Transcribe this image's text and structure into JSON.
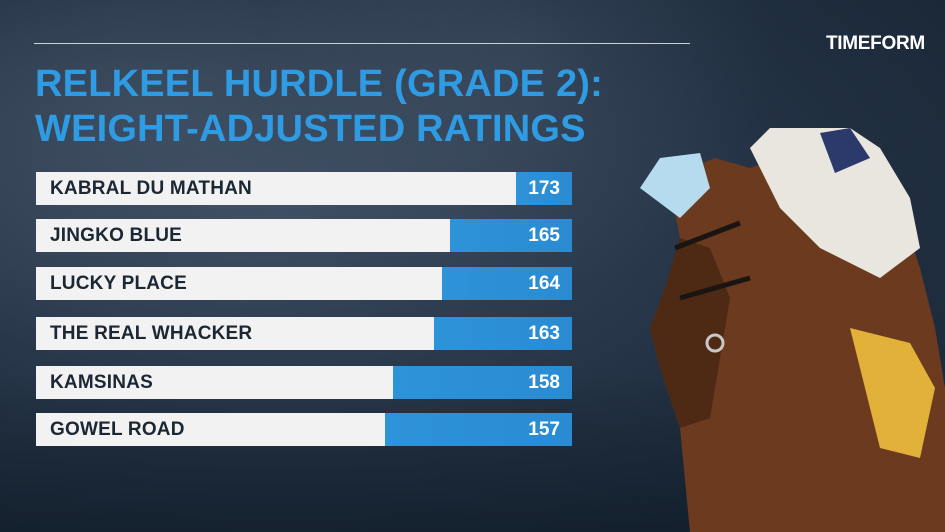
{
  "logo_text": "TIMEFORM",
  "title_line1": "RELKEEL HURDLE (GRADE 2):",
  "title_line2": "WEIGHT-ADJUSTED RATINGS",
  "colors": {
    "title": "#2f9be3",
    "bar_fill": "#2e93d9",
    "bar_track": "#f2f2f2",
    "background": "#223143"
  },
  "chart_data": {
    "type": "bar",
    "orientation": "horizontal",
    "title": "RELKEEL HURDLE (GRADE 2): WEIGHT-ADJUSTED RATINGS",
    "categories": [
      "KABRAL DU MATHAN",
      "JINGKO BLUE",
      "LUCKY PLACE",
      "THE REAL WHACKER",
      "KAMSINAS",
      "GOWEL ROAD"
    ],
    "values": [
      173,
      165,
      164,
      163,
      158,
      157
    ],
    "data_labels": [
      "173",
      "165",
      "164",
      "163",
      "158",
      "157"
    ],
    "grid": false,
    "legend": "none"
  }
}
